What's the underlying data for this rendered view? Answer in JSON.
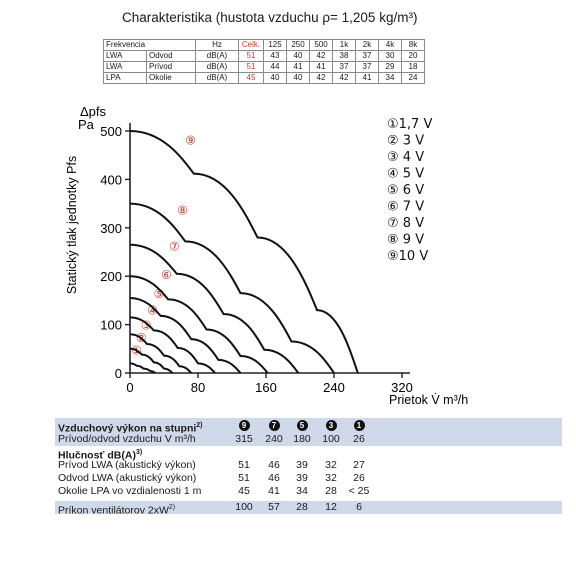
{
  "title": "Charakteristika (hustota vzduchu ρ= 1,205 kg/m³)",
  "sound_table": {
    "header": [
      "Frekvencia",
      "",
      "Hz",
      "Celk.",
      "125",
      "250",
      "500",
      "1k",
      "2k",
      "4k",
      "8k"
    ],
    "rows": [
      {
        "label": "LWA",
        "type": "Odvod",
        "unit": "dB(A)",
        "total": "51",
        "values": [
          "43",
          "40",
          "42",
          "38",
          "37",
          "30",
          "20"
        ]
      },
      {
        "label": "LWA",
        "type": "Prívod",
        "unit": "dB(A)",
        "total": "51",
        "values": [
          "44",
          "41",
          "41",
          "37",
          "37",
          "29",
          "18"
        ]
      },
      {
        "label": "LPA",
        "type": "Okolie",
        "unit": "dB(A)",
        "total": "45",
        "values": [
          "40",
          "40",
          "42",
          "42",
          "41",
          "34",
          "24"
        ]
      }
    ]
  },
  "chart_data": {
    "type": "line",
    "title": "",
    "xlabel": "Prietok V̇ m³/h",
    "ylabel": "Statický tlak jednotky Pfs",
    "y_unit_label": "Δpfs Pa",
    "xlim": [
      0,
      320
    ],
    "ylim": [
      0,
      500
    ],
    "x_ticks": [
      "0",
      "80",
      "160",
      "240",
      "320"
    ],
    "y_ticks": [
      "0",
      "100",
      "200",
      "300",
      "400",
      "500"
    ],
    "grid": false,
    "series": [
      {
        "name": "1,7 V",
        "marker": "①",
        "x": [
          0,
          8,
          16,
          24,
          30
        ],
        "y": [
          20,
          15,
          9,
          4,
          0
        ]
      },
      {
        "name": "3 V",
        "marker": "②",
        "x": [
          0,
          14,
          28,
          40,
          50
        ],
        "y": [
          50,
          38,
          22,
          9,
          0
        ]
      },
      {
        "name": "4 V",
        "marker": "③",
        "x": [
          0,
          20,
          40,
          58,
          72
        ],
        "y": [
          80,
          60,
          36,
          14,
          0
        ]
      },
      {
        "name": "5 V",
        "marker": "④",
        "x": [
          0,
          28,
          56,
          80,
          100
        ],
        "y": [
          115,
          88,
          52,
          20,
          0
        ]
      },
      {
        "name": "6 V",
        "marker": "⑤",
        "x": [
          0,
          36,
          72,
          104,
          130
        ],
        "y": [
          155,
          118,
          70,
          27,
          0
        ]
      },
      {
        "name": "7 V",
        "marker": "⑥",
        "x": [
          0,
          45,
          90,
          130,
          162
        ],
        "y": [
          200,
          152,
          90,
          35,
          0
        ]
      },
      {
        "name": "8 V",
        "marker": "⑦",
        "x": [
          0,
          55,
          110,
          158,
          198
        ],
        "y": [
          265,
          205,
          122,
          48,
          0
        ]
      },
      {
        "name": "9 V",
        "marker": "⑧",
        "x": [
          0,
          65,
          130,
          190,
          240
        ],
        "y": [
          350,
          272,
          165,
          65,
          0
        ]
      },
      {
        "name": "10 V",
        "marker": "⑨",
        "x": [
          0,
          75,
          150,
          220,
          268
        ],
        "y": [
          500,
          412,
          280,
          130,
          0
        ]
      }
    ]
  },
  "legend": [
    "①1,7 V",
    "②  3 V",
    "③  4 V",
    "④  5 V",
    "⑤  6 V",
    "⑥  7 V",
    "⑦  8 V",
    "⑧  9 V",
    "⑨10 V"
  ],
  "bottom_table": {
    "header_label": "Vzduchový výkon na stupni",
    "header_sup": "2)",
    "steps": [
      "9",
      "7",
      "5",
      "3",
      "1"
    ],
    "airflow_label": "Prívod/odvod vzduchu V m³/h",
    "airflow": [
      "315",
      "240",
      "180",
      "100",
      "26"
    ],
    "noise_title": "Hlučnosť dB(A)",
    "noise_sup": "3)",
    "rows": [
      {
        "label": "Prívod LWA (akustický výkon)",
        "values": [
          "51",
          "46",
          "39",
          "32",
          "27"
        ]
      },
      {
        "label": "Odvod LWA (akustický výkon)",
        "values": [
          "51",
          "46",
          "39",
          "32",
          "26"
        ]
      },
      {
        "label": "Okolie LPA vo vzdialenosti 1 m",
        "values": [
          "45",
          "41",
          "34",
          "28",
          "< 25"
        ]
      }
    ],
    "power_label": "Príkon ventilátorov 2xW",
    "power_sup": "2)",
    "power": [
      "100",
      "57",
      "28",
      "12",
      "6"
    ]
  }
}
